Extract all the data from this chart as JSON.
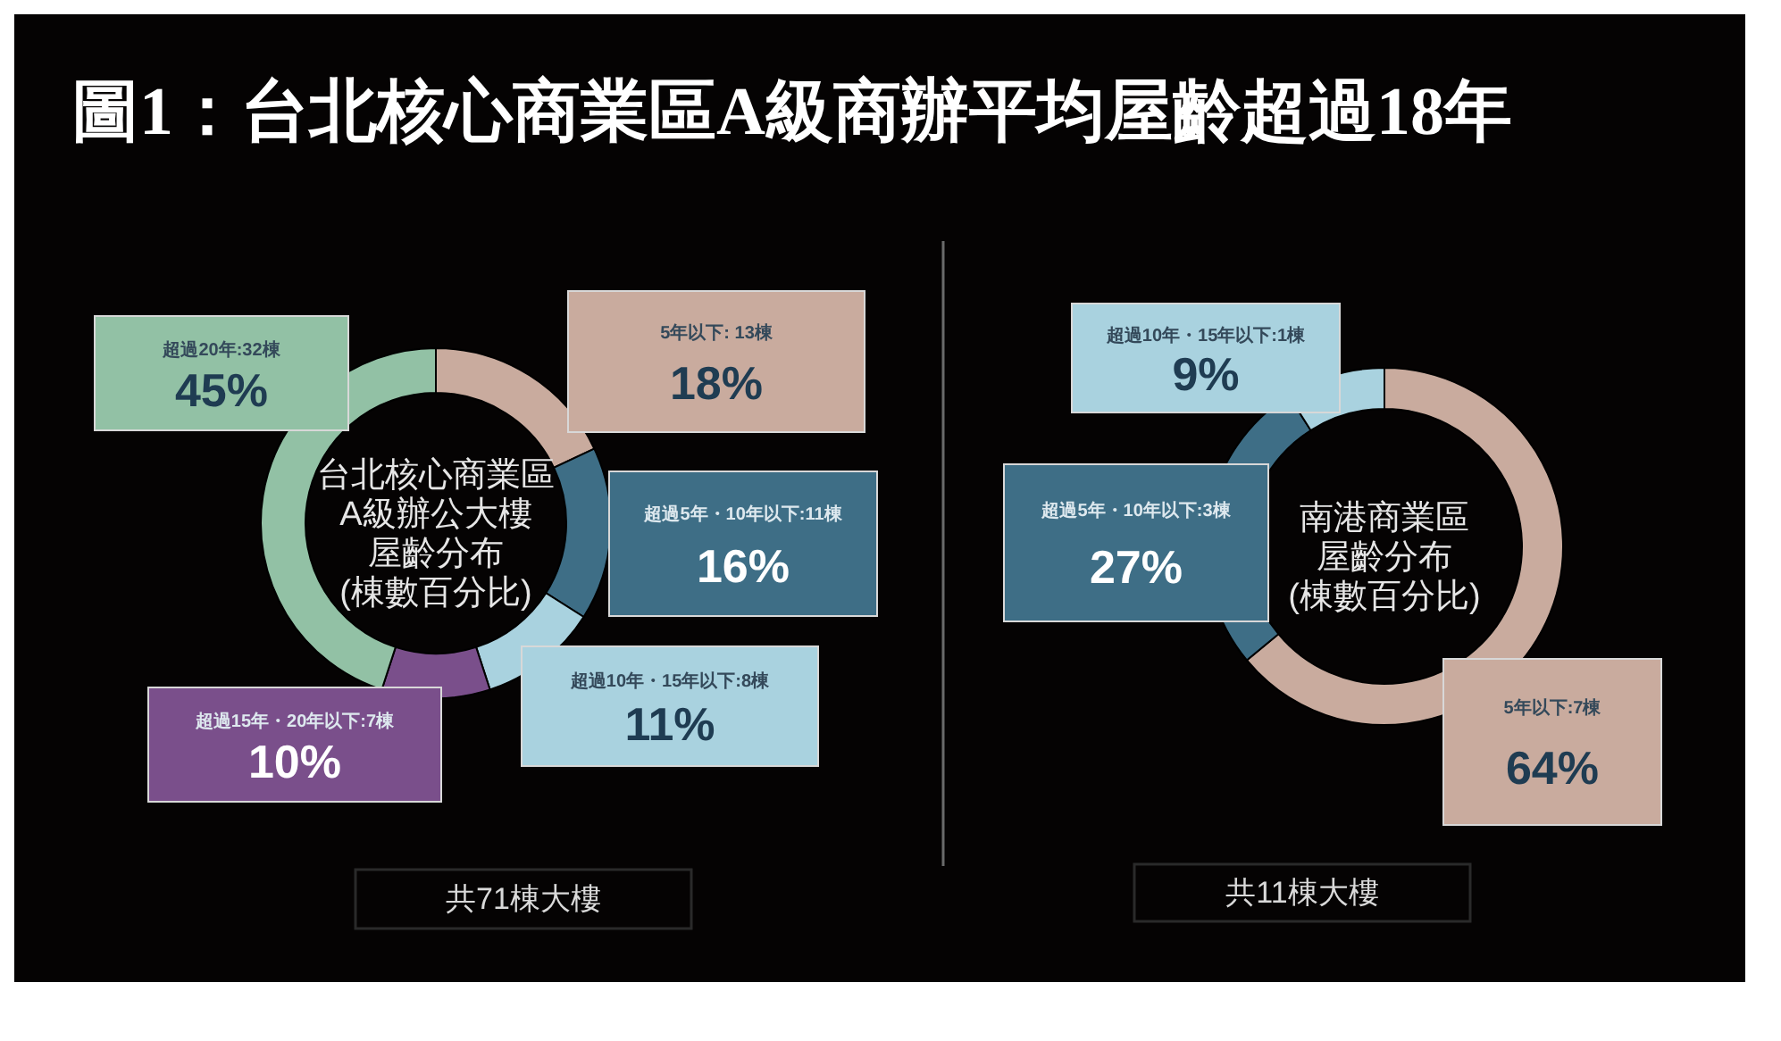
{
  "chart_data": [
    {
      "type": "donut",
      "title": "圖1：台北核心商業區A級商辦平均屋齡超過18年",
      "categories": [
        "5年以下: 13棟",
        "超過5年・10年以下:11棟",
        "超過10年・15年以下:8棟",
        "超過15年・20年以下:7棟",
        "超過20年:32棟"
      ],
      "values": [
        18,
        16,
        11,
        10,
        45
      ],
      "value_labels": [
        "18%",
        "16%",
        "11%",
        "10%",
        "45%"
      ],
      "colors": [
        "#c9ab9e",
        "#3e6e86",
        "#a9d2df",
        "#7a4f8b",
        "#92c1a5"
      ],
      "annotations": [
        "台北核心商業區",
        "A級辦公大樓",
        "屋齡分布",
        "(棟數百分比)",
        "共71棟大樓"
      ]
    },
    {
      "type": "donut",
      "categories": [
        "5年以下:7棟",
        "超過5年・10年以下:3棟",
        "超過10年・15年以下:1棟"
      ],
      "values": [
        64,
        27,
        9
      ],
      "value_labels": [
        "64%",
        "27%",
        "9%"
      ],
      "colors": [
        "#c9ab9e",
        "#3e6e86",
        "#a9d2df"
      ],
      "annotations": [
        "南港商業區",
        "屋齡分布",
        "(棟數百分比)",
        "共11棟大樓"
      ]
    }
  ]
}
